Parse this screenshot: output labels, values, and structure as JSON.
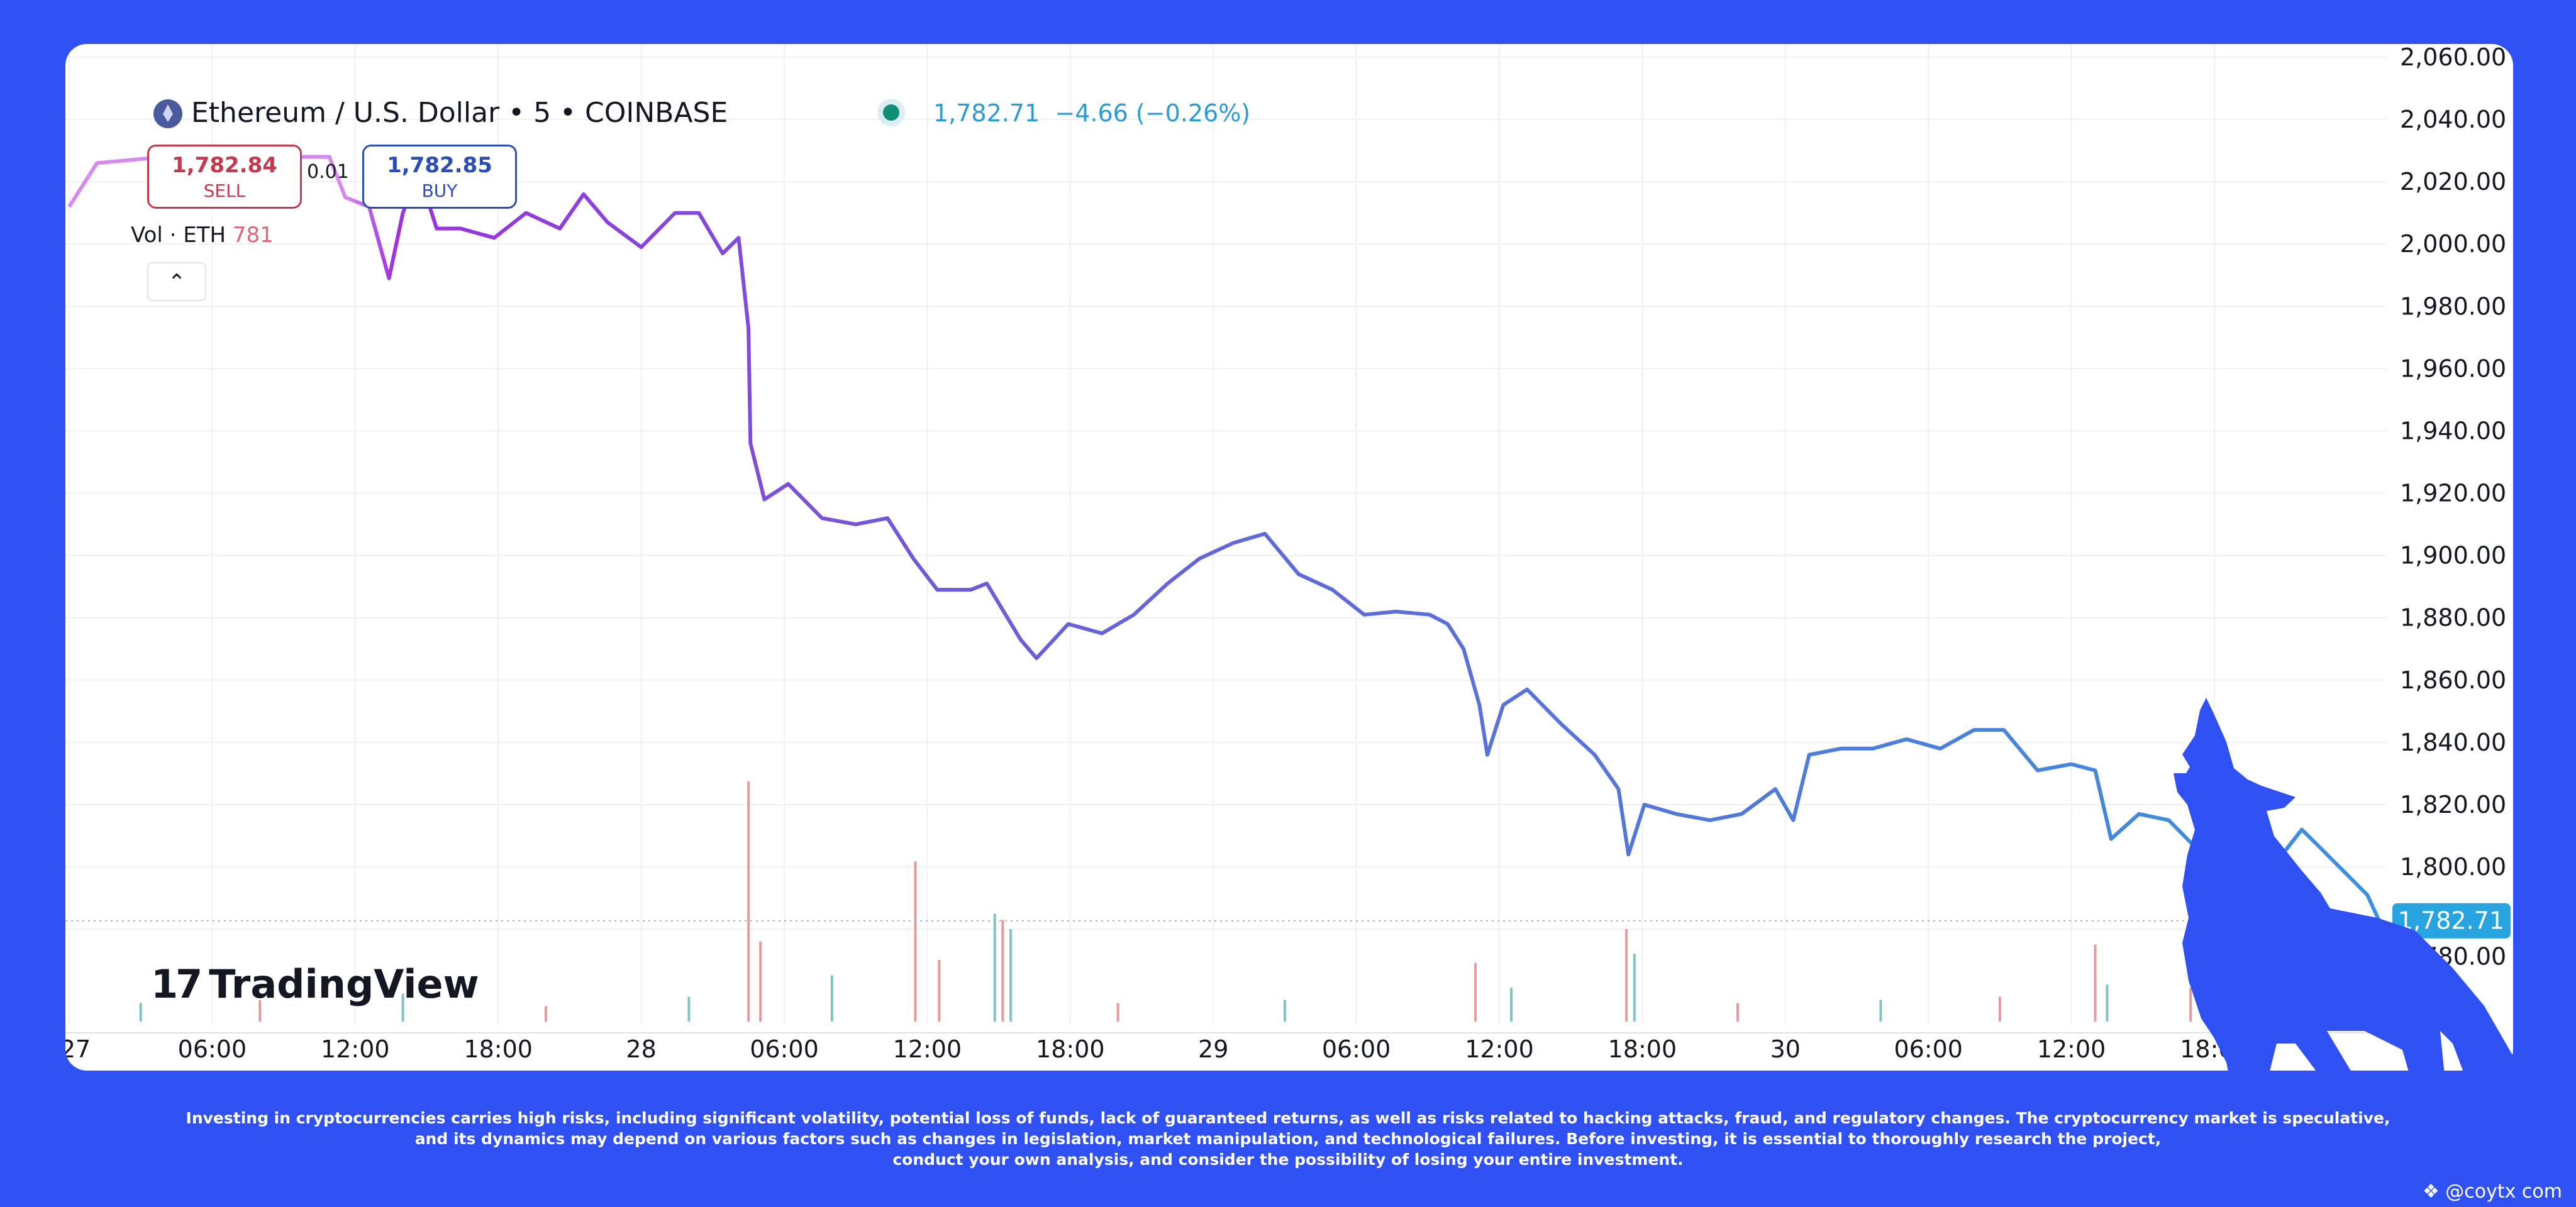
{
  "header": {
    "title": "Ethereum / U.S. Dollar • 5 • COINBASE",
    "last_price": "1,782.71",
    "change": "−4.66 (−0.26%)",
    "status_color": "#0f8f75"
  },
  "trade": {
    "sell_price": "1,782.84",
    "sell_label": "SELL",
    "spread": "0.01",
    "buy_price": "1,782.85",
    "buy_label": "BUY"
  },
  "volume_legend": {
    "label": "Vol · ETH",
    "value": "781"
  },
  "collapse_icon": "chevron-up-icon",
  "logo": {
    "text": "TradingView"
  },
  "disclaimer": [
    "Investing in cryptocurrencies carries high risks, including significant volatility, potential loss of funds, lack of guaranteed returns, as well as risks related to hacking attacks, fraud, and regulatory changes. The cryptocurrency market is speculative,",
    "and its dynamics may depend on various factors such as changes in legislation, market manipulation, and technological failures. Before investing, it is essential to thoroughly research the project,",
    "conduct your own analysis, and consider the possibility of losing your entire investment."
  ],
  "watermark": "@coytx com",
  "colors": {
    "background": "#2f50f2",
    "line_start": "#d68af0",
    "line_mid": "#a030e0",
    "line_mid2": "#6a5fd8",
    "line_end": "#3a92dc",
    "price_tag": "#27a3e0",
    "volume_up": "#7fc4c0",
    "volume_down": "#e89a9a"
  },
  "chart_data": {
    "type": "line",
    "title": "Ethereum / U.S. Dollar • 5 • COINBASE",
    "xlabel": "",
    "ylabel": "",
    "ylim": [
      1775,
      2065
    ],
    "yticks": [
      "2,060.00",
      "2,040.00",
      "2,020.00",
      "2,000.00",
      "1,980.00",
      "1,960.00",
      "1,940.00",
      "1,920.00",
      "1,900.00",
      "1,880.00",
      "1,860.00",
      "1,840.00",
      "1,820.00",
      "1,800.00",
      "1,780.00"
    ],
    "ytick_values": [
      2060,
      2040,
      2020,
      2000,
      1980,
      1960,
      1940,
      1920,
      1900,
      1880,
      1860,
      1840,
      1820,
      1800,
      1780
    ],
    "xticks": [
      "27",
      "06:00",
      "12:00",
      "18:00",
      "28",
      "06:00",
      "12:00",
      "18:00",
      "29",
      "06:00",
      "12:00",
      "18:00",
      "30",
      "06:00",
      "12:00",
      "18:00"
    ],
    "xtick_times": [
      "27 00:00",
      "27 06:00",
      "27 12:00",
      "27 18:00",
      "28 00:00",
      "28 06:00",
      "28 12:00",
      "28 18:00",
      "29 00:00",
      "29 06:00",
      "29 12:00",
      "29 18:00",
      "30 00:00",
      "30 06:00",
      "30 12:00",
      "30 18:00"
    ],
    "xlim": [
      "27 00:00",
      "31 01:20"
    ],
    "grid": true,
    "last_price": 1782.71,
    "last_price_label": "1,782.71",
    "x": [
      "27 00:00",
      "27 01:10",
      "27 04:00",
      "27 06:50",
      "27 09:30",
      "27 10:55",
      "27 11:35",
      "27 12:35",
      "27 13:25",
      "27 14:00",
      "27 14:40",
      "27 15:25",
      "27 16:25",
      "27 17:50",
      "27 19:10",
      "27 20:35",
      "27 21:35",
      "27 22:35",
      "28 00:00",
      "28 01:25",
      "28 02:25",
      "28 03:25",
      "28 04:05",
      "28 04:30",
      "28 04:35",
      "28 05:10",
      "28 06:10",
      "28 07:35",
      "28 09:00",
      "28 10:20",
      "28 11:25",
      "28 12:25",
      "28 13:50",
      "28 14:30",
      "28 15:55",
      "28 16:35",
      "28 17:55",
      "28 19:20",
      "28 20:40",
      "28 22:05",
      "28 23:25",
      "29 00:50",
      "29 02:10",
      "29 03:35",
      "29 05:00",
      "29 06:20",
      "29 07:40",
      "29 09:05",
      "29 09:50",
      "29 10:30",
      "29 11:10",
      "29 11:30",
      "29 12:10",
      "29 13:10",
      "29 14:35",
      "29 16:00",
      "29 17:00",
      "29 17:25",
      "29 18:05",
      "29 19:25",
      "29 20:50",
      "29 22:10",
      "29 23:35",
      "30 00:20",
      "30 01:00",
      "30 02:20",
      "30 03:40",
      "30 05:05",
      "30 06:30",
      "30 07:55",
      "30 09:10",
      "30 10:35",
      "30 12:00",
      "30 13:00",
      "30 13:40",
      "30 14:50",
      "30 16:05",
      "30 17:30",
      "30 18:55",
      "30 20:20",
      "30 21:40",
      "30 22:20",
      "31 00:25",
      "31 00:55"
    ],
    "y": [
      2012,
      2026,
      2028,
      2026,
      2028,
      2028,
      2015,
      2012,
      1989,
      2010,
      2023,
      2005,
      2005,
      2002,
      2010,
      2005,
      2016,
      2007,
      1999,
      2010,
      2010,
      1997,
      2002,
      1973,
      1936,
      1918,
      1923,
      1912,
      1910,
      1912,
      1899,
      1889,
      1889,
      1891,
      1873,
      1867,
      1878,
      1875,
      1881,
      1891,
      1899,
      1904,
      1907,
      1894,
      1889,
      1881,
      1882,
      1881,
      1878,
      1870,
      1852,
      1836,
      1852,
      1857,
      1846,
      1836,
      1825,
      1804,
      1820,
      1817,
      1815,
      1817,
      1825,
      1815,
      1836,
      1838,
      1838,
      1841,
      1838,
      1844,
      1844,
      1831,
      1833,
      1831,
      1809,
      1817,
      1815,
      1804,
      1799,
      1799,
      1812,
      1807,
      1791,
      1782.71
    ],
    "volume": {
      "x": [
        "27 03:00",
        "27 08:00",
        "27 14:00",
        "27 20:00",
        "28 02:00",
        "28 04:30",
        "28 05:00",
        "28 08:00",
        "28 11:30",
        "28 12:30",
        "28 14:50",
        "28 15:10",
        "28 15:30",
        "28 20:00",
        "29 03:00",
        "29 11:00",
        "29 12:30",
        "29 17:20",
        "29 17:40",
        "29 22:00",
        "30 04:00",
        "30 09:00",
        "30 13:00",
        "30 13:30",
        "30 17:00",
        "30 19:00"
      ],
      "values": [
        60,
        70,
        90,
        50,
        80,
        780,
        260,
        150,
        520,
        200,
        350,
        330,
        300,
        60,
        70,
        190,
        110,
        300,
        220,
        60,
        70,
        80,
        250,
        120,
        110,
        140
      ],
      "direction": [
        "up",
        "down",
        "up",
        "down",
        "up",
        "down",
        "down",
        "up",
        "down",
        "down",
        "up",
        "down",
        "up",
        "down",
        "up",
        "down",
        "up",
        "down",
        "up",
        "down",
        "up",
        "down",
        "down",
        "up",
        "down",
        "up"
      ]
    }
  }
}
